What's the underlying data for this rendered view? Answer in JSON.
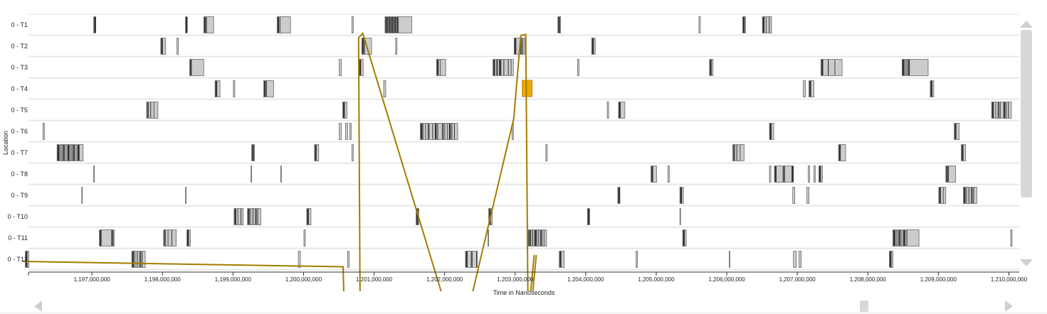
{
  "axis": {
    "ylabel": "Location",
    "xlabel": "Time in Nanoseconds",
    "ticks": [
      "1,197,000,000",
      "1,198,000,000",
      "1,199,000,000",
      "1,200,000,000",
      "1,201,000,000",
      "1,202,000,000",
      "1,203,000,000",
      "1,204,000,000",
      "1,205,000,000",
      "1,206,000,000",
      "1,207,000,000",
      "1,208,000,000",
      "1,209,000,000",
      "1,210,000,000"
    ]
  },
  "rows": [
    {
      "label": "0 - T1",
      "spans": [
        [
          1197.02,
          1197.05,
          1
        ],
        [
          1198.32,
          1198.34,
          1
        ],
        [
          1198.58,
          1198.72,
          2
        ],
        [
          1199.62,
          1199.81,
          1
        ],
        [
          1200.68,
          1200.7,
          0
        ],
        [
          1201.15,
          1201.53,
          3
        ],
        [
          1203.6,
          1203.64,
          1
        ],
        [
          1205.6,
          1205.62,
          0
        ],
        [
          1206.22,
          1206.26,
          1
        ],
        [
          1206.5,
          1206.63,
          2
        ]
      ]
    },
    {
      "label": "0 - T2",
      "spans": [
        [
          1197.97,
          1198.04,
          1
        ],
        [
          1198.2,
          1198.22,
          0
        ],
        [
          1200.82,
          1200.96,
          2
        ],
        [
          1201.3,
          1201.32,
          0
        ],
        [
          1202.98,
          1203.13,
          2
        ],
        [
          1204.08,
          1204.13,
          1
        ]
      ]
    },
    {
      "label": "0 - T3",
      "spans": [
        [
          1198.38,
          1198.58,
          1
        ],
        [
          1200.5,
          1200.53,
          0
        ],
        [
          1200.78,
          1200.84,
          1
        ],
        [
          1201.88,
          1202.01,
          1
        ],
        [
          1202.68,
          1202.97,
          2
        ],
        [
          1203.88,
          1203.9,
          0
        ],
        [
          1205.75,
          1205.8,
          1
        ],
        [
          1207.33,
          1207.63,
          2
        ],
        [
          1208.48,
          1208.85,
          1
        ]
      ]
    },
    {
      "label": "0 - T4",
      "spans": [
        [
          1198.74,
          1198.81,
          1
        ],
        [
          1199,
          1199.02,
          0
        ],
        [
          1199.43,
          1199.57,
          2
        ],
        [
          1201.13,
          1201.16,
          0
        ],
        [
          1207.08,
          1207.11,
          0
        ],
        [
          1207.16,
          1207.23,
          1
        ],
        [
          1208.88,
          1208.93,
          1
        ]
      ]
    },
    {
      "label": "0 - T5",
      "spans": [
        [
          1197.77,
          1197.93,
          2
        ],
        [
          1200.55,
          1200.61,
          1
        ],
        [
          1204.3,
          1204.32,
          0
        ],
        [
          1204.46,
          1204.55,
          1
        ],
        [
          1209.75,
          1210.03,
          2
        ]
      ]
    },
    {
      "label": "0 - T6",
      "spans": [
        [
          1196.3,
          1196.32,
          0
        ],
        [
          1200.5,
          1200.53,
          0
        ],
        [
          1200.59,
          1200.62,
          0
        ],
        [
          1200.65,
          1200.67,
          0
        ],
        [
          1201.65,
          1202.18,
          2
        ],
        [
          1202.95,
          1202.97,
          0
        ],
        [
          1206.6,
          1206.66,
          1
        ],
        [
          1209.22,
          1209.29,
          1
        ]
      ]
    },
    {
      "label": "0 - T7",
      "spans": [
        [
          1196.5,
          1196.87,
          3
        ],
        [
          1199.26,
          1199.3,
          1
        ],
        [
          1200.15,
          1200.21,
          1
        ],
        [
          1200.68,
          1200.7,
          0
        ],
        [
          1203.43,
          1203.45,
          0
        ],
        [
          1206.08,
          1206.24,
          2
        ],
        [
          1207.58,
          1207.68,
          1
        ],
        [
          1209.32,
          1209.38,
          1
        ]
      ]
    },
    {
      "label": "0 - T8",
      "spans": [
        [
          1197.02,
          1197.03,
          0
        ],
        [
          1199.25,
          1199.26,
          0
        ],
        [
          1199.67,
          1199.68,
          0
        ],
        [
          1204.92,
          1205.0,
          1
        ],
        [
          1205.16,
          1205.18,
          0
        ],
        [
          1206.6,
          1206.62,
          0
        ],
        [
          1206.67,
          1206.94,
          3
        ],
        [
          1207.15,
          1207.17,
          0
        ],
        [
          1207.23,
          1207.25,
          0
        ],
        [
          1207.3,
          1207.35,
          1
        ],
        [
          1209.1,
          1209.24,
          2
        ]
      ]
    },
    {
      "label": "0 - T9",
      "spans": [
        [
          1196.85,
          1196.86,
          0
        ],
        [
          1198.32,
          1198.33,
          0
        ],
        [
          1204.45,
          1204.48,
          1
        ],
        [
          1205.33,
          1205.38,
          1
        ],
        [
          1206.93,
          1206.96,
          0
        ],
        [
          1207.13,
          1207.16,
          0
        ],
        [
          1209.0,
          1209.1,
          2
        ],
        [
          1209.35,
          1209.54,
          2
        ]
      ]
    },
    {
      "label": "0 - T10",
      "spans": [
        [
          1199.01,
          1199.14,
          2
        ],
        [
          1199.2,
          1199.39,
          2
        ],
        [
          1200.04,
          1200.1,
          1
        ],
        [
          1201.59,
          1201.63,
          1
        ],
        [
          1202.62,
          1202.67,
          1
        ],
        [
          1204.02,
          1204.05,
          1
        ],
        [
          1205.33,
          1205.34,
          0
        ]
      ]
    },
    {
      "label": "0 - T11",
      "spans": [
        [
          1197.1,
          1197.31,
          2
        ],
        [
          1198.01,
          1198.19,
          2
        ],
        [
          1198.34,
          1198.39,
          1
        ],
        [
          1200.0,
          1200.02,
          0
        ],
        [
          1202.61,
          1202.62,
          0
        ],
        [
          1203.18,
          1203.44,
          3
        ],
        [
          1205.37,
          1205.42,
          1
        ],
        [
          1208.35,
          1208.72,
          2
        ],
        [
          1210.02,
          1210.04,
          0
        ]
      ]
    },
    {
      "label": "0 - T12",
      "spans": [
        [
          1196.05,
          1196.1,
          1
        ],
        [
          1197.56,
          1197.75,
          2
        ],
        [
          1199.92,
          1199.95,
          0
        ],
        [
          1200.62,
          1200.64,
          0
        ],
        [
          1202.29,
          1202.46,
          2
        ],
        [
          1203.62,
          1203.69,
          1
        ],
        [
          1204.71,
          1204.73,
          0
        ],
        [
          1206.03,
          1206.04,
          0
        ],
        [
          1206.94,
          1206.98,
          0
        ],
        [
          1207.02,
          1207.05,
          0
        ],
        [
          1208.3,
          1208.35,
          1
        ]
      ]
    }
  ],
  "highlight": {
    "row": 3,
    "start": 1203.1,
    "end": 1203.24,
    "color": "#f0a800"
  },
  "link_color": "#a37c00",
  "links": [
    [
      [
        1196.02,
        11.6
      ],
      [
        1200.56,
        11.85
      ],
      [
        1200.57,
        13
      ]
    ],
    [
      [
        1200.8,
        13
      ],
      [
        1200.78,
        1.1
      ],
      [
        1200.84,
        0.9
      ],
      [
        1201.95,
        13
      ]
    ],
    [
      [
        1202.4,
        13
      ],
      [
        1202.98,
        4.9
      ],
      [
        1203.08,
        1.0
      ],
      [
        1203.15,
        0.95
      ],
      [
        1203.18,
        13
      ]
    ],
    [
      [
        1203.22,
        13
      ],
      [
        1203.27,
        11.3
      ]
    ],
    [
      [
        1203.25,
        13
      ],
      [
        1203.3,
        11.3
      ]
    ]
  ]
}
